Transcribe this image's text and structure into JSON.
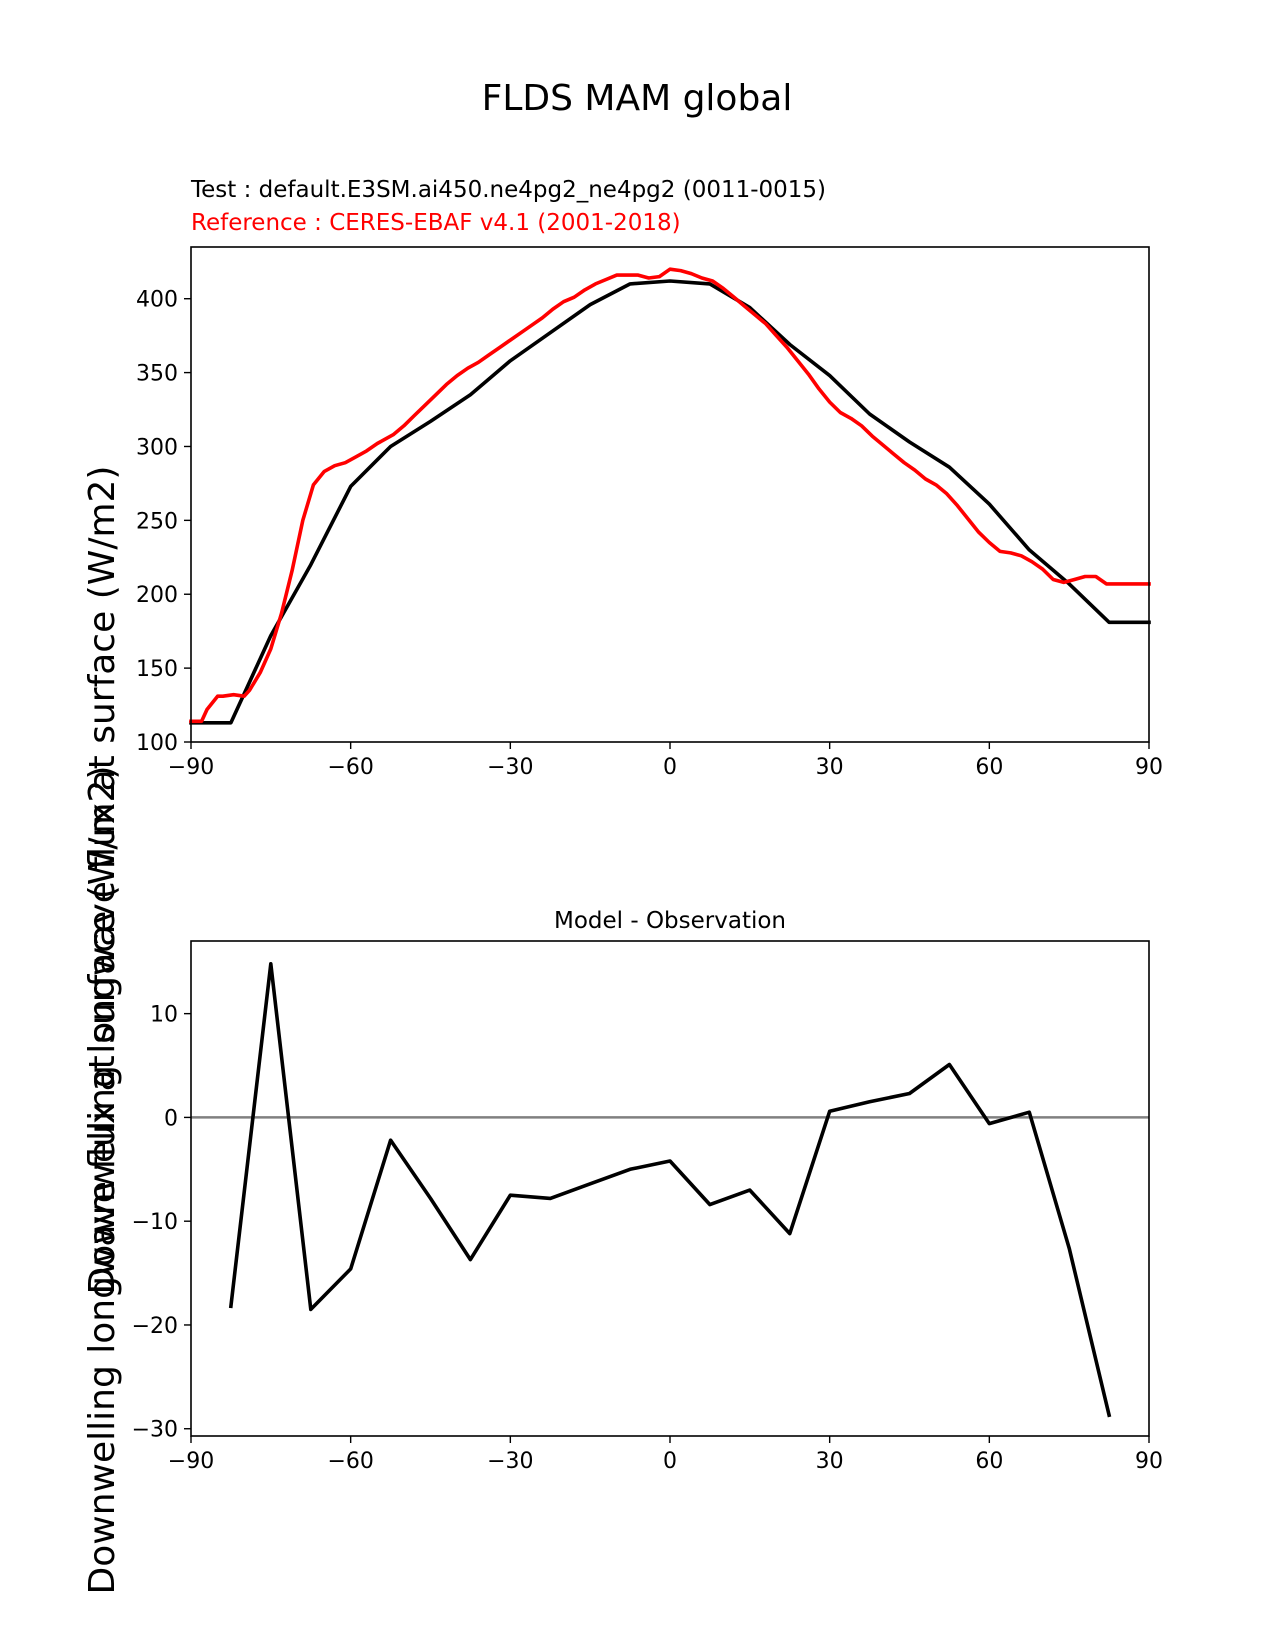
{
  "figure": {
    "title": "FLDS MAM global",
    "ylabel": "Downwelling longwave flux at surface (W/m2)",
    "ylabel_lower": "Downwelling longwave flux at surface (W/m2)"
  },
  "top": {
    "test_label": "Test : default.E3SM.ai450.ne4pg2_ne4pg2 (0011-0015)",
    "ref_label": "Reference : CERES-EBAF v4.1 (2001-2018)"
  },
  "bottom": {
    "title": "Model - Observation"
  },
  "colors": {
    "test": "#000000",
    "reference": "#ff0000",
    "zero_line": "#808080"
  },
  "chart_data": [
    {
      "type": "line",
      "xlim": [
        -90,
        90
      ],
      "ylim": [
        100,
        435
      ],
      "xticks": [
        -90,
        -60,
        -30,
        0,
        30,
        60,
        90
      ],
      "yticks": [
        100,
        150,
        200,
        250,
        300,
        350,
        400
      ],
      "series": [
        {
          "name": "Test : default.E3SM.ai450.ne4pg2_ne4pg2 (0011-0015)",
          "color": "#000000",
          "x": [
            -90,
            -82.5,
            -75,
            -67.5,
            -60,
            -52.5,
            -45,
            -37.5,
            -30,
            -22.5,
            -15,
            -7.5,
            0,
            7.5,
            15,
            22.5,
            30,
            37.5,
            45,
            52.5,
            60,
            67.5,
            75,
            82.5,
            90
          ],
          "y": [
            113,
            113,
            172,
            220,
            273,
            300,
            317,
            335,
            358,
            377,
            396,
            410,
            412,
            410,
            394,
            369,
            348,
            322,
            303,
            286,
            261,
            230,
            207,
            181,
            181
          ]
        },
        {
          "name": "Reference : CERES-EBAF v4.1 (2001-2018)",
          "color": "#ff0000",
          "x": [
            -90,
            -88,
            -87,
            -85,
            -84,
            -82,
            -80,
            -79,
            -77,
            -75,
            -73,
            -71,
            -69,
            -67,
            -65,
            -63,
            -61,
            -59,
            -57,
            -55,
            -52,
            -50,
            -48,
            -46,
            -44,
            -42,
            -40,
            -38,
            -36,
            -34,
            -32,
            -30,
            -28,
            -26,
            -24,
            -22,
            -20,
            -18,
            -16,
            -14,
            -12,
            -10,
            -8,
            -6,
            -4,
            -2,
            0,
            2,
            4,
            6,
            8,
            10,
            12,
            14,
            16,
            18,
            20,
            22,
            24,
            26,
            28,
            30,
            32,
            34,
            36,
            38,
            40,
            42,
            44,
            46,
            48,
            50,
            52,
            54,
            56,
            58,
            60,
            62,
            64,
            66,
            68,
            70,
            72,
            74,
            76,
            78,
            80,
            82,
            84,
            86,
            88,
            90
          ],
          "y": [
            114,
            114,
            122,
            131,
            131,
            132,
            131,
            135,
            147,
            163,
            187,
            216,
            250,
            274,
            283,
            287,
            289,
            293,
            297,
            302,
            308,
            314,
            321,
            328,
            335,
            342,
            348,
            353,
            357,
            362,
            367,
            372,
            377,
            382,
            387,
            393,
            398,
            401,
            406,
            410,
            413,
            416,
            416,
            416,
            414,
            415,
            420,
            419,
            417,
            414,
            412,
            407,
            401,
            395,
            389,
            383,
            375,
            367,
            358,
            349,
            339,
            330,
            323,
            319,
            314,
            307,
            301,
            295,
            289,
            284,
            278,
            274,
            268,
            260,
            251,
            242,
            235,
            229,
            228,
            226,
            222,
            217,
            210,
            208,
            210,
            212,
            212,
            207,
            207,
            207,
            207,
            207
          ]
        }
      ]
    },
    {
      "type": "line",
      "title": "Model - Observation",
      "xlim": [
        -90,
        90
      ],
      "ylim": [
        -30.7,
        17
      ],
      "xticks": [
        -90,
        -60,
        -30,
        0,
        30,
        60,
        90
      ],
      "yticks": [
        -30,
        -20,
        -10,
        0,
        10
      ],
      "zero_line": 0,
      "series": [
        {
          "color": "#000000",
          "x": [
            -82.5,
            -75,
            -67.5,
            -60,
            -52.5,
            -45,
            -37.5,
            -30,
            -22.5,
            -15,
            -7.5,
            0,
            7.5,
            15,
            22.5,
            30,
            37.5,
            45,
            52.5,
            60,
            67.5,
            75,
            82.5
          ],
          "y": [
            -18.2,
            14.8,
            -18.5,
            -14.6,
            -2.2,
            -7.8,
            -13.7,
            -7.5,
            -7.8,
            -6.4,
            -5.0,
            -4.2,
            -8.4,
            -7.0,
            -11.2,
            0.6,
            1.5,
            2.3,
            5.1,
            -0.6,
            0.5,
            -12.6,
            -28.7
          ]
        }
      ]
    }
  ]
}
